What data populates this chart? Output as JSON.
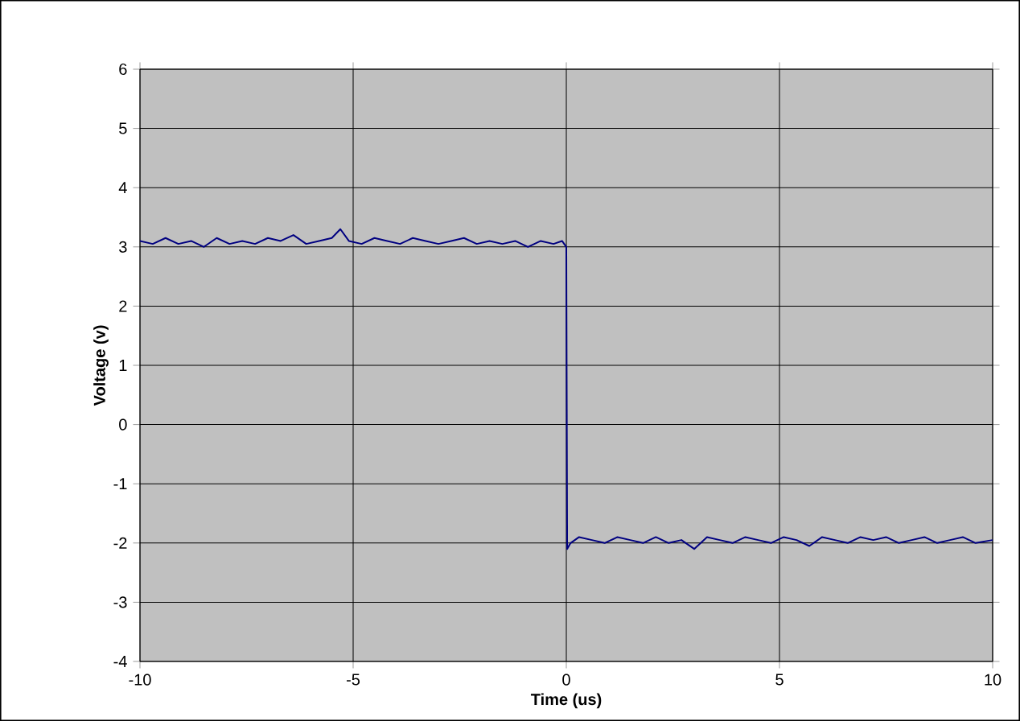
{
  "chart_data": {
    "type": "line",
    "xlabel": "Time (us)",
    "ylabel": "Voltage (v)",
    "x": [
      -10,
      -9.7,
      -9.4,
      -9.1,
      -8.8,
      -8.5,
      -8.2,
      -7.9,
      -7.6,
      -7.3,
      -7.0,
      -6.7,
      -6.4,
      -6.1,
      -5.8,
      -5.5,
      -5.3,
      -5.1,
      -4.8,
      -4.5,
      -4.2,
      -3.9,
      -3.6,
      -3.3,
      -3.0,
      -2.7,
      -2.4,
      -2.1,
      -1.8,
      -1.5,
      -1.2,
      -0.9,
      -0.6,
      -0.3,
      -0.1,
      0,
      0.02,
      0.1,
      0.3,
      0.6,
      0.9,
      1.2,
      1.5,
      1.8,
      2.1,
      2.4,
      2.7,
      3.0,
      3.3,
      3.6,
      3.9,
      4.2,
      4.5,
      4.8,
      5.1,
      5.4,
      5.7,
      6.0,
      6.3,
      6.6,
      6.9,
      7.2,
      7.5,
      7.8,
      8.1,
      8.4,
      8.7,
      9.0,
      9.3,
      9.6,
      10
    ],
    "series": [
      {
        "color": "#000080",
        "values": [
          3.1,
          3.05,
          3.15,
          3.05,
          3.1,
          3.0,
          3.15,
          3.05,
          3.1,
          3.05,
          3.15,
          3.1,
          3.2,
          3.05,
          3.1,
          3.15,
          3.3,
          3.1,
          3.05,
          3.15,
          3.1,
          3.05,
          3.15,
          3.1,
          3.05,
          3.1,
          3.15,
          3.05,
          3.1,
          3.05,
          3.1,
          3.0,
          3.1,
          3.05,
          3.1,
          3.0,
          -2.1,
          -2.0,
          -1.9,
          -1.95,
          -2.0,
          -1.9,
          -1.95,
          -2.0,
          -1.9,
          -2.0,
          -1.95,
          -2.1,
          -1.9,
          -1.95,
          -2.0,
          -1.9,
          -1.95,
          -2.0,
          -1.9,
          -1.95,
          -2.05,
          -1.9,
          -1.95,
          -2.0,
          -1.9,
          -1.95,
          -1.9,
          -2.0,
          -1.95,
          -1.9,
          -2.0,
          -1.95,
          -1.9,
          -2.0,
          -1.95
        ]
      }
    ],
    "xlim": [
      -10,
      10
    ],
    "xticks": [
      -10,
      -5,
      0,
      5,
      10
    ],
    "ylim": [
      -4,
      6
    ],
    "yticks": [
      -4,
      -3,
      -2,
      -1,
      0,
      1,
      2,
      3,
      4,
      5,
      6
    ],
    "grid": true,
    "marker": "none",
    "line_style": "solid"
  }
}
